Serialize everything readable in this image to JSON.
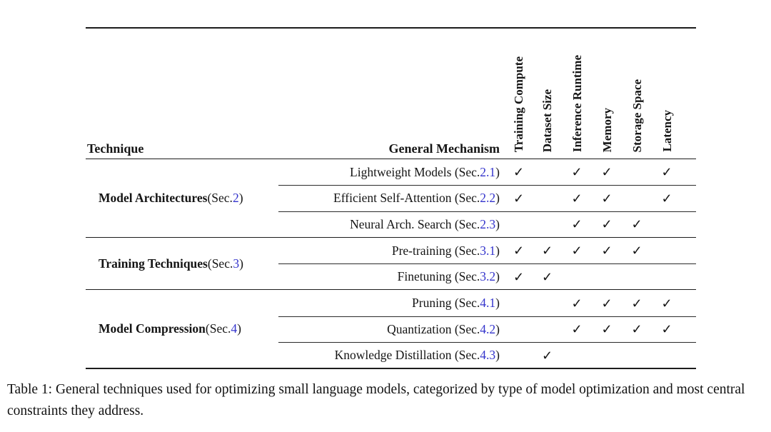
{
  "colors": {
    "link_blue": "#3434cc",
    "rule_color": "#1c1c1c",
    "background": "#ffffff"
  },
  "check_glyph": "✓",
  "table": {
    "headers": {
      "technique": "Technique",
      "mechanism": "General Mechanism",
      "constraints": [
        "Training Compute",
        "Dataset Size",
        "Inference Runtime",
        "Memory",
        "Storage Space",
        "Latency"
      ]
    },
    "groups": [
      {
        "name": "Model Architectures",
        "sec_prefix": " (Sec. ",
        "sec": "2",
        "sec_close": ")",
        "rows": [
          {
            "prefix": "Lightweight Models (Sec. ",
            "sec": "2.1",
            "close": ")",
            "checks": [
              "✓",
              "",
              "✓",
              "✓",
              "",
              "✓"
            ]
          },
          {
            "prefix": "Efficient Self-Attention (Sec. ",
            "sec": "2.2",
            "close": ")",
            "checks": [
              "✓",
              "",
              "✓",
              "✓",
              "",
              "✓"
            ]
          },
          {
            "prefix": "Neural Arch. Search (Sec. ",
            "sec": "2.3",
            "close": ")",
            "checks": [
              "",
              "",
              "✓",
              "✓",
              "✓",
              ""
            ]
          }
        ]
      },
      {
        "name": "Training Techniques",
        "sec_prefix": " (Sec. ",
        "sec": "3",
        "sec_close": ")",
        "rows": [
          {
            "prefix": "Pre-training (Sec. ",
            "sec": "3.1",
            "close": ")",
            "checks": [
              "✓",
              "✓",
              "✓",
              "✓",
              "✓",
              ""
            ]
          },
          {
            "prefix": "Finetuning (Sec. ",
            "sec": "3.2",
            "close": ")",
            "checks": [
              "✓",
              "✓",
              "",
              "",
              "",
              ""
            ]
          }
        ]
      },
      {
        "name": "Model Compression",
        "sec_prefix": " (Sec. ",
        "sec": "4",
        "sec_close": ")",
        "rows": [
          {
            "prefix": "Pruning (Sec. ",
            "sec": "4.1",
            "close": ")",
            "checks": [
              "",
              "",
              "✓",
              "✓",
              "✓",
              "✓"
            ]
          },
          {
            "prefix": "Quantization (Sec. ",
            "sec": "4.2",
            "close": ")",
            "checks": [
              "",
              "",
              "✓",
              "✓",
              "✓",
              "✓"
            ]
          },
          {
            "prefix": "Knowledge Distillation (Sec. ",
            "sec": "4.3",
            "close": ")",
            "checks": [
              "",
              "✓",
              "",
              "",
              "",
              ""
            ]
          }
        ]
      }
    ]
  },
  "caption": {
    "text": "Table 1: General techniques used for optimizing small language models, categorized by type of model optimization and most central constraints they address."
  }
}
